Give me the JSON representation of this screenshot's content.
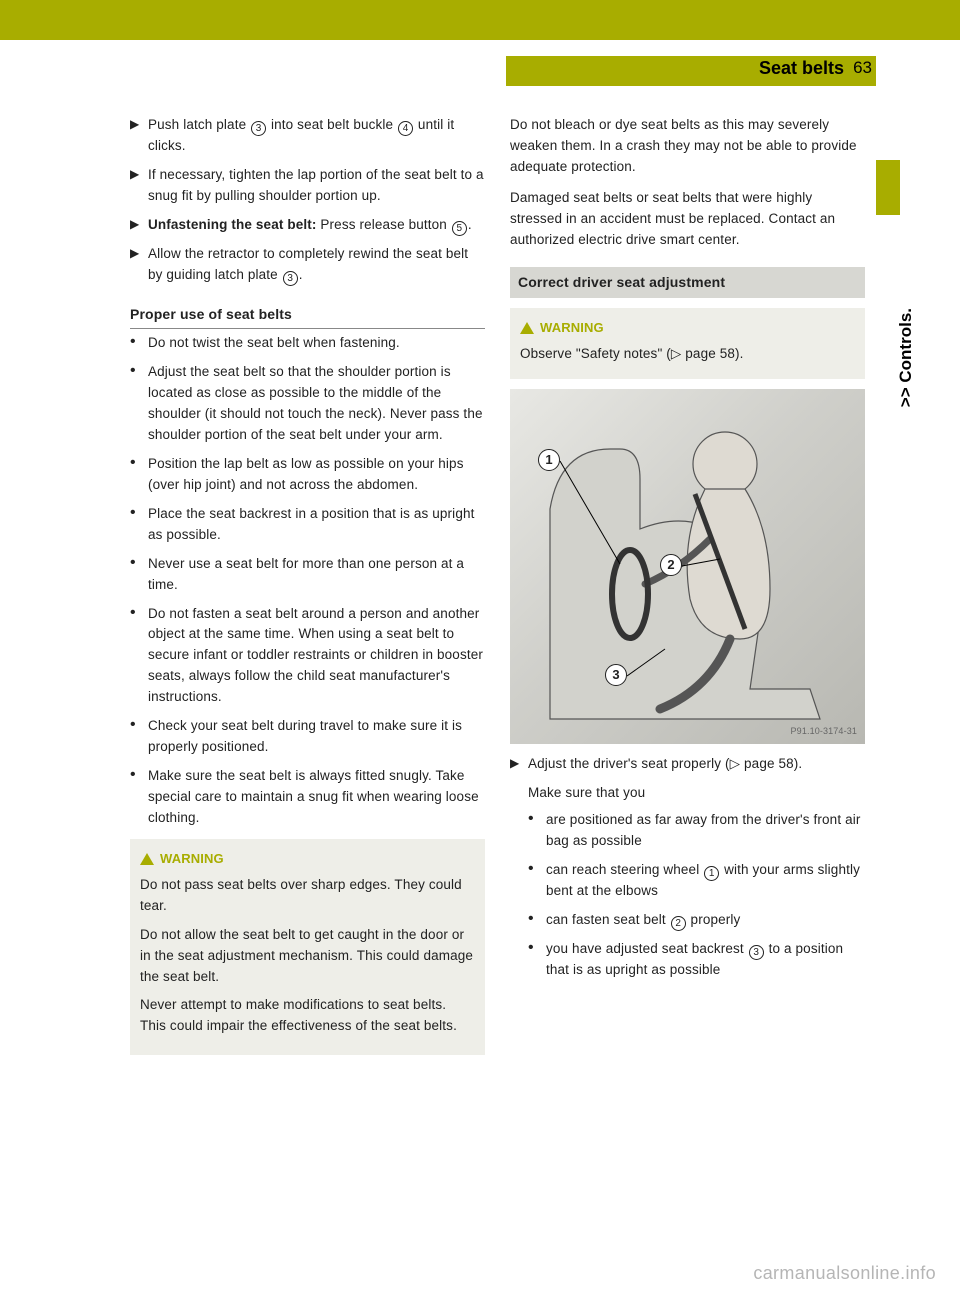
{
  "header": {
    "section_title": "Seat belts",
    "page_number": "63",
    "side_label": ">> Controls."
  },
  "left": {
    "steps": [
      {
        "html": "Push latch plate <span class='circ'>3</span> into seat belt buckle <span class='circ'>4</span> until it clicks."
      },
      {
        "html": "If necessary, tighten the lap portion of the seat belt to a snug fit by pulling shoulder portion up."
      },
      {
        "html": "<b>Unfastening the seat belt:</b> Press release button <span class='circ'>5</span>."
      },
      {
        "html": "Allow the retractor to completely rewind the seat belt by guiding latch plate <span class='circ'>3</span>."
      }
    ],
    "subheading": "Proper use of seat belts",
    "bullets": [
      "Do not twist the seat belt when fastening.",
      "Adjust the seat belt so that the shoulder portion is located as close as possible to the middle of the shoulder (it should not touch the neck). Never pass the shoulder portion of the seat belt under your arm.",
      "Position the lap belt as low as possible on your hips (over hip joint) and not across the abdomen.",
      "Place the seat backrest in a position that is as upright as possible.",
      "Never use a seat belt for more than one person at a time.",
      "Do not fasten a seat belt around a person and another object at the same time. When using a seat belt to secure infant or toddler restraints or children in booster seats, always follow the child seat manufacturer's instructions.",
      "Check your seat belt during travel to make sure it is properly positioned.",
      "Make sure the seat belt is always fitted snugly. Take special care to maintain a snug fit when wearing loose clothing."
    ],
    "warning": {
      "label": "WARNING",
      "paras": [
        "Do not pass seat belts over sharp edges. They could tear.",
        "Do not allow the seat belt to get caught in the door or in the seat adjustment mechanism. This could damage the seat belt.",
        "Never attempt to make modifications to seat belts. This could impair the effectiveness of the seat belts."
      ]
    }
  },
  "right": {
    "intro_paras": [
      "Do not bleach or dye seat belts as this may severely weaken them. In a crash they may not be able to provide adequate protection.",
      "Damaged seat belts or seat belts that were highly stressed in an accident must be replaced. Contact an authorized electric drive smart center."
    ],
    "section_heading": "Correct driver seat adjustment",
    "warning": {
      "label": "WARNING",
      "text": "Observe \"Safety notes\" (▷ page 58)."
    },
    "image_id": "P91.10-3174-31",
    "after_steps": [
      {
        "html": "Adjust the driver's seat properly (▷ page 58)."
      }
    ],
    "after_plain": "Make sure that you",
    "sub_bullets": [
      "are positioned as far away from the driver's front air bag as possible",
      {
        "html": "can reach steering wheel <span class='circ'>1</span> with your arms slightly bent at the elbows"
      },
      {
        "html": "can fasten seat belt <span class='circ'>2</span> properly"
      },
      {
        "html": "you have adjusted seat backrest <span class='circ'>3</span> to a position that is as upright as possible"
      }
    ]
  },
  "watermark": "carmanualsonline.info"
}
